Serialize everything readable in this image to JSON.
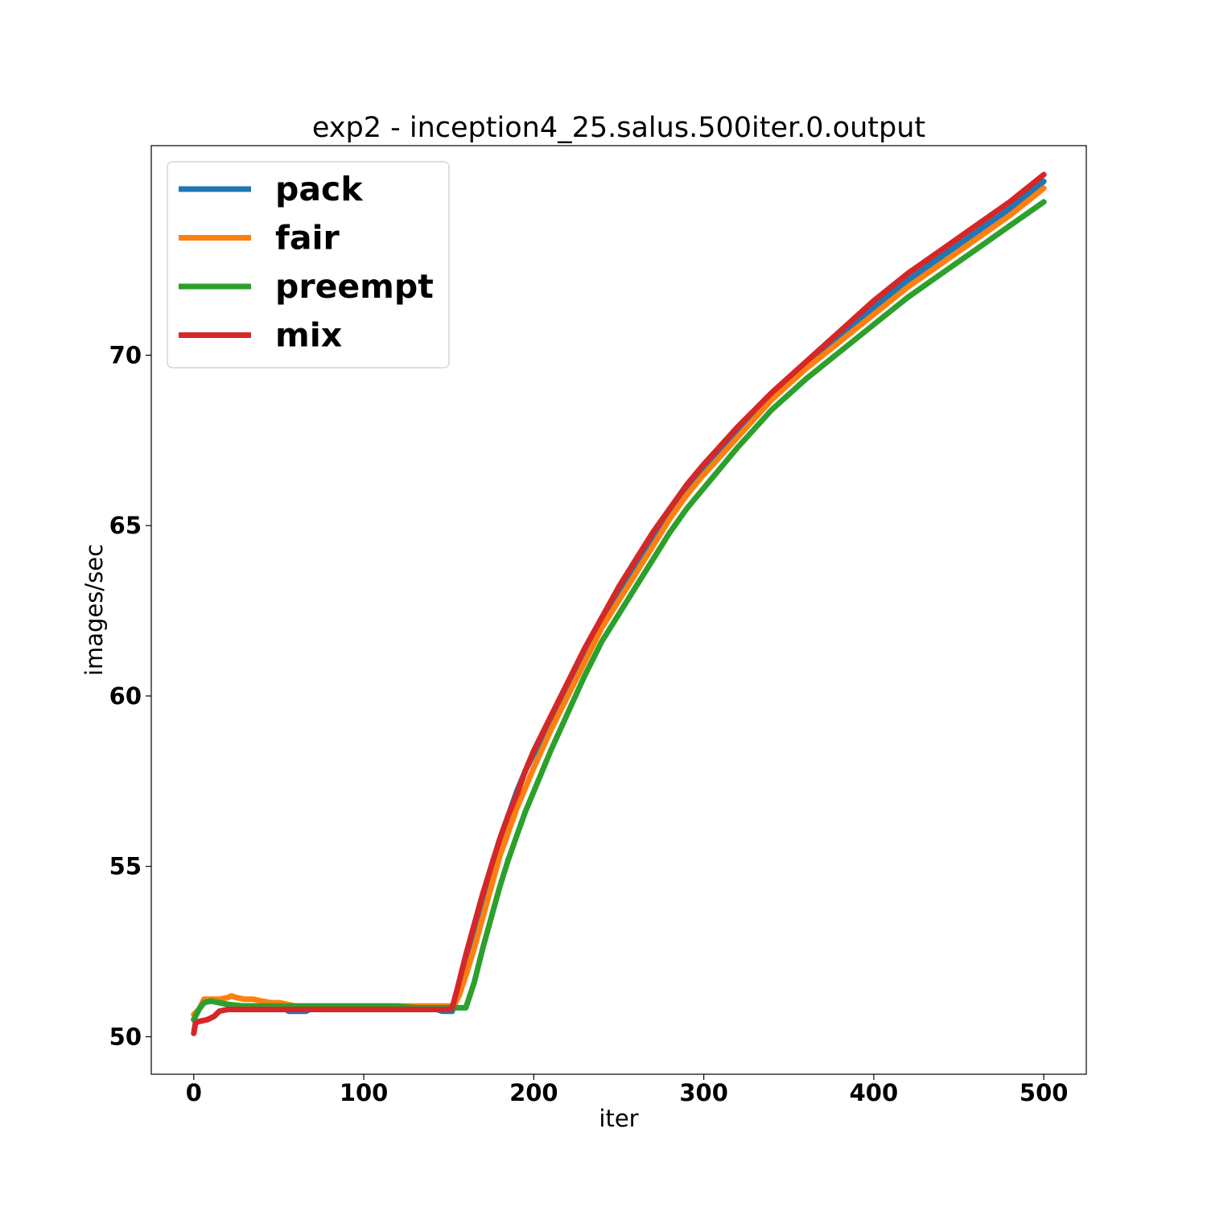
{
  "chart_data": {
    "type": "line",
    "title": "exp2 - inception4_25.salus.500iter.0.output",
    "xlabel": "iter",
    "ylabel": "images/sec",
    "xlim": [
      -25,
      525
    ],
    "ylim": [
      48.9,
      76.15
    ],
    "xticks": [
      0,
      100,
      200,
      300,
      400,
      500
    ],
    "yticks": [
      50,
      55,
      60,
      65,
      70
    ],
    "xtick_labels": [
      "0",
      "100",
      "200",
      "300",
      "400",
      "500"
    ],
    "ytick_labels": [
      "50",
      "55",
      "60",
      "65",
      "70"
    ],
    "grid": false,
    "legend_position": "upper-left",
    "series": [
      {
        "name": "pack",
        "color": "#1f77b4",
        "x": [
          0,
          3,
          6,
          10,
          15,
          20,
          25,
          30,
          35,
          40,
          50,
          56,
          60,
          66,
          70,
          80,
          90,
          100,
          110,
          120,
          130,
          140,
          146,
          150,
          152,
          155,
          158,
          160,
          165,
          170,
          175,
          180,
          185,
          190,
          195,
          200,
          210,
          220,
          230,
          240,
          250,
          260,
          270,
          280,
          290,
          300,
          320,
          340,
          360,
          380,
          400,
          420,
          440,
          460,
          480,
          500
        ],
        "y": [
          50.5,
          50.8,
          51.0,
          51.05,
          51.0,
          50.95,
          50.9,
          50.9,
          50.9,
          50.9,
          50.9,
          50.75,
          50.75,
          50.75,
          50.85,
          50.85,
          50.85,
          50.85,
          50.85,
          50.85,
          50.85,
          50.85,
          50.75,
          50.75,
          50.75,
          51.3,
          51.8,
          52.3,
          53.2,
          54.1,
          55.0,
          55.8,
          56.5,
          57.2,
          57.8,
          58.3,
          59.3,
          60.3,
          61.3,
          62.2,
          63.1,
          63.9,
          64.7,
          65.4,
          66.0,
          66.6,
          67.8,
          68.8,
          69.7,
          70.6,
          71.4,
          72.2,
          72.9,
          73.6,
          74.3,
          75.1
        ]
      },
      {
        "name": "fair",
        "color": "#ff7f0e",
        "x": [
          0,
          3,
          6,
          10,
          15,
          20,
          22,
          25,
          30,
          35,
          40,
          45,
          50,
          55,
          60,
          70,
          80,
          90,
          100,
          110,
          120,
          130,
          140,
          150,
          153,
          156,
          160,
          165,
          170,
          175,
          180,
          185,
          190,
          195,
          200,
          210,
          220,
          230,
          240,
          250,
          260,
          270,
          280,
          290,
          300,
          320,
          340,
          360,
          380,
          400,
          420,
          440,
          460,
          480,
          500
        ],
        "y": [
          50.65,
          50.8,
          51.1,
          51.1,
          51.1,
          51.15,
          51.2,
          51.15,
          51.1,
          51.1,
          51.05,
          51.0,
          51.0,
          50.95,
          50.9,
          50.9,
          50.9,
          50.9,
          50.9,
          50.9,
          50.9,
          50.9,
          50.9,
          50.9,
          50.9,
          51.2,
          51.8,
          52.6,
          53.5,
          54.4,
          55.3,
          56.0,
          56.7,
          57.3,
          57.9,
          59.0,
          60.0,
          61.0,
          62.0,
          62.8,
          63.6,
          64.4,
          65.2,
          65.9,
          66.5,
          67.6,
          68.7,
          69.6,
          70.4,
          71.2,
          72.0,
          72.7,
          73.4,
          74.1,
          74.9
        ]
      },
      {
        "name": "preempt",
        "color": "#2ca02c",
        "x": [
          0,
          3,
          6,
          10,
          15,
          20,
          30,
          40,
          50,
          60,
          70,
          80,
          90,
          100,
          110,
          120,
          130,
          140,
          150,
          155,
          158,
          160,
          165,
          170,
          175,
          180,
          185,
          190,
          195,
          200,
          210,
          220,
          230,
          240,
          250,
          260,
          270,
          280,
          290,
          300,
          320,
          340,
          360,
          380,
          400,
          420,
          440,
          460,
          480,
          500
        ],
        "y": [
          50.5,
          50.8,
          51.0,
          51.05,
          51.0,
          50.95,
          50.9,
          50.9,
          50.9,
          50.9,
          50.9,
          50.9,
          50.9,
          50.9,
          50.9,
          50.9,
          50.85,
          50.85,
          50.85,
          50.85,
          50.85,
          50.85,
          51.6,
          52.6,
          53.5,
          54.4,
          55.2,
          55.9,
          56.6,
          57.2,
          58.4,
          59.5,
          60.6,
          61.6,
          62.4,
          63.2,
          64.0,
          64.8,
          65.5,
          66.1,
          67.3,
          68.4,
          69.3,
          70.1,
          70.9,
          71.7,
          72.4,
          73.1,
          73.8,
          74.5
        ]
      },
      {
        "name": "mix",
        "color": "#d62728",
        "x": [
          0,
          1,
          3,
          8,
          12,
          15,
          20,
          25,
          30,
          40,
          50,
          60,
          70,
          80,
          90,
          100,
          110,
          120,
          130,
          140,
          150,
          152,
          155,
          160,
          165,
          170,
          175,
          180,
          185,
          190,
          195,
          200,
          210,
          220,
          230,
          240,
          250,
          260,
          270,
          280,
          290,
          300,
          320,
          340,
          360,
          380,
          400,
          420,
          440,
          460,
          480,
          500
        ],
        "y": [
          50.1,
          50.4,
          50.45,
          50.5,
          50.6,
          50.75,
          50.8,
          50.8,
          50.8,
          50.8,
          50.8,
          50.8,
          50.8,
          50.8,
          50.8,
          50.8,
          50.8,
          50.8,
          50.8,
          50.8,
          50.8,
          50.85,
          51.4,
          52.4,
          53.3,
          54.2,
          55.0,
          55.8,
          56.5,
          57.1,
          57.8,
          58.4,
          59.4,
          60.4,
          61.4,
          62.3,
          63.2,
          64.0,
          64.8,
          65.5,
          66.2,
          66.8,
          67.9,
          68.9,
          69.8,
          70.7,
          71.6,
          72.4,
          73.1,
          73.8,
          74.5,
          75.3
        ]
      }
    ]
  }
}
